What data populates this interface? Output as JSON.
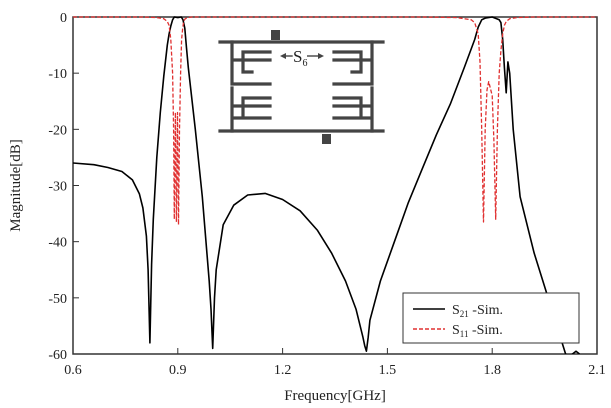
{
  "chart_data": {
    "type": "line",
    "title": "",
    "xlabel": "Frequency[GHz]",
    "ylabel": "Magnitude[dB]",
    "xlim": [
      0.6,
      2.1
    ],
    "ylim": [
      -60,
      0
    ],
    "xticks": [
      "0.6",
      "0.9",
      "1.2",
      "1.5",
      "1.8",
      "2.1"
    ],
    "yticks": [
      "0",
      "-10",
      "-20",
      "-30",
      "-40",
      "-50",
      "-60"
    ],
    "grid": false,
    "legend_position": "bottom-right",
    "series": [
      {
        "name": "S21 -Sim.",
        "label_main": "S",
        "label_sub": "21",
        "label_rest": " -Sim.",
        "color": "#000000",
        "dash": "solid",
        "x": [
          0.6,
          0.66,
          0.7,
          0.74,
          0.77,
          0.79,
          0.8,
          0.81,
          0.815,
          0.82,
          0.825,
          0.83,
          0.84,
          0.85,
          0.86,
          0.87,
          0.875,
          0.88,
          0.885,
          0.89,
          0.9,
          0.91,
          0.915,
          0.92,
          0.925,
          0.93,
          0.95,
          0.97,
          0.99,
          0.995,
          1.0,
          1.005,
          1.01,
          1.03,
          1.06,
          1.1,
          1.15,
          1.2,
          1.25,
          1.3,
          1.34,
          1.38,
          1.41,
          1.43,
          1.435,
          1.44,
          1.445,
          1.45,
          1.48,
          1.52,
          1.56,
          1.6,
          1.64,
          1.68,
          1.72,
          1.75,
          1.76,
          1.77,
          1.78,
          1.8,
          1.82,
          1.825,
          1.83,
          1.835,
          1.84,
          1.845,
          1.85,
          1.86,
          1.88,
          1.92,
          1.96,
          1.99,
          2.01,
          2.02,
          2.03,
          2.04,
          2.05
        ],
        "y": [
          -26.0,
          -26.3,
          -26.8,
          -27.5,
          -29.0,
          -31.5,
          -34.0,
          -39.0,
          -45.0,
          -58.0,
          -44.0,
          -36.0,
          -25.0,
          -17.0,
          -10.5,
          -5.0,
          -3.0,
          -1.6,
          -0.5,
          0.0,
          -0.1,
          0.0,
          -0.5,
          -2.0,
          -5.5,
          -9.0,
          -20.0,
          -32.0,
          -47.0,
          -52.0,
          -59.0,
          -50.0,
          -45.0,
          -37.0,
          -33.5,
          -31.7,
          -31.4,
          -32.5,
          -34.5,
          -38.0,
          -42.0,
          -47.0,
          -52.0,
          -57.0,
          -58.5,
          -59.5,
          -57.0,
          -54.0,
          -47.0,
          -40.0,
          -33.0,
          -27.0,
          -21.0,
          -15.5,
          -9.0,
          -4.0,
          -1.8,
          -0.5,
          -0.2,
          0.0,
          -0.5,
          -1.0,
          -4.0,
          -9.0,
          -13.5,
          -8.0,
          -10.0,
          -20.0,
          -32.0,
          -42.0,
          -50.0,
          -56.0,
          -60.0,
          -60.5,
          -60.0,
          -59.5,
          -60.0
        ]
      },
      {
        "name": "S11 -Sim.",
        "label_main": "S",
        "label_sub": "11",
        "label_rest": " -Sim.",
        "color": "#e03030",
        "dash": "4,2",
        "x": [
          0.6,
          0.8,
          0.84,
          0.86,
          0.87,
          0.875,
          0.88,
          0.885,
          0.888,
          0.89,
          0.893,
          0.896,
          0.899,
          0.902,
          0.905,
          0.908,
          0.911,
          0.914,
          0.917,
          0.92,
          0.925,
          0.93,
          0.94,
          0.96,
          1.0,
          1.6,
          1.7,
          1.74,
          1.75,
          1.76,
          1.765,
          1.77,
          1.775,
          1.78,
          1.785,
          1.79,
          1.8,
          1.805,
          1.81,
          1.815,
          1.82,
          1.825,
          1.83,
          1.835,
          1.84,
          1.85,
          1.87,
          1.92,
          2.1
        ],
        "y": [
          0.0,
          0.0,
          -0.1,
          -0.3,
          -0.8,
          -1.5,
          -4.0,
          -10.0,
          -20.0,
          -36.0,
          -17.0,
          -36.5,
          -17.0,
          -37.0,
          -20.0,
          -10.0,
          -4.0,
          -2.0,
          -0.8,
          -0.4,
          -0.2,
          -0.1,
          0.0,
          0.0,
          0.0,
          0.0,
          -0.1,
          -0.5,
          -1.0,
          -3.0,
          -8.0,
          -20.0,
          -36.5,
          -20.0,
          -13.0,
          -11.5,
          -14.0,
          -22.0,
          -36.0,
          -20.0,
          -10.0,
          -6.0,
          -3.0,
          -1.5,
          -0.8,
          -0.3,
          -0.1,
          0.0,
          0.0
        ]
      }
    ],
    "inset_label_main": "S",
    "inset_label_sub": "6"
  }
}
